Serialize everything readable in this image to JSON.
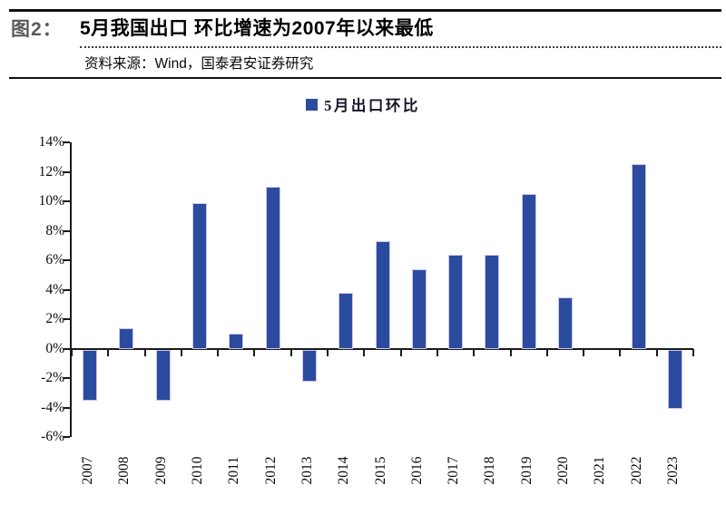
{
  "figure": {
    "label": "图2：",
    "title": "5月我国出口 环比增速为2007年以来最低",
    "source": "资料来源：Wind，国泰君安证券研究"
  },
  "chart_data": {
    "type": "bar",
    "title": "",
    "legend": "5月出口环比",
    "legend_position": "top-center",
    "categories": [
      "2007",
      "2008",
      "2009",
      "2010",
      "2011",
      "2012",
      "2013",
      "2014",
      "2015",
      "2016",
      "2017",
      "2018",
      "2019",
      "2020",
      "2021",
      "2022",
      "2023"
    ],
    "values": [
      -3.5,
      1.4,
      -3.5,
      9.9,
      1.0,
      11.0,
      -2.2,
      3.8,
      7.3,
      5.4,
      6.4,
      6.4,
      10.5,
      3.5,
      0,
      12.5,
      -4.0
    ],
    "xlabel": "",
    "ylabel": "",
    "ylim": [
      -6,
      14
    ],
    "ytick_step": 2,
    "ytick_labels": [
      "14%",
      "12%",
      "10%",
      "8%",
      "6%",
      "4%",
      "2%",
      "0%",
      "-2%",
      "-4%",
      "-6%"
    ],
    "grid": false
  },
  "colors": {
    "bar": "#2B4B9E",
    "bar_edge": "#CBC7E9",
    "axis": "#1A1A1A",
    "figure_label": "#595959"
  }
}
